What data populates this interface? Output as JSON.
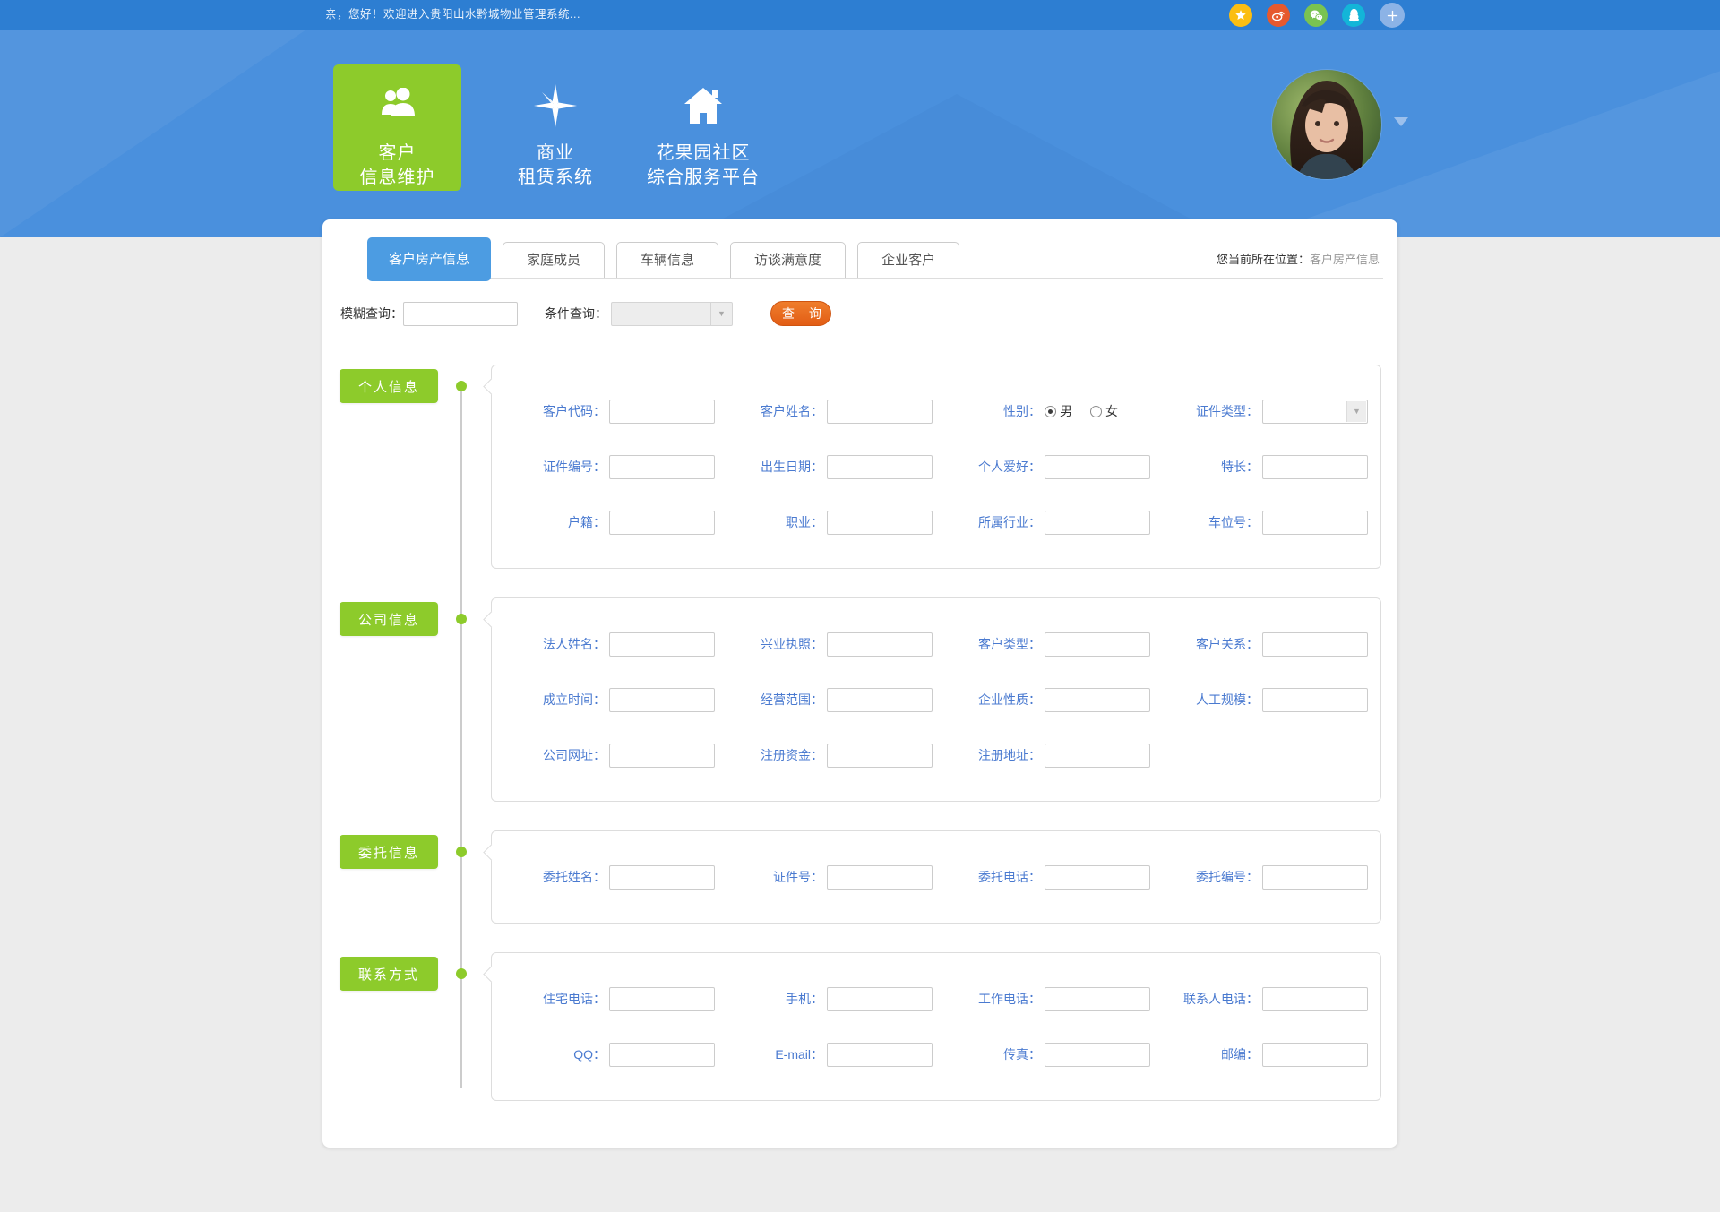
{
  "colors": {
    "topbar_blue": "#2d7ed2",
    "header_blue": "#4a90dd",
    "accent_green": "#8dcb2b",
    "tab_active_blue": "#4c9ce2",
    "field_label_blue": "#4a7ad0",
    "query_orange": "#e8671d"
  },
  "topbar": {
    "welcome": "亲，您好！欢迎进入贵阳山水黔城物业管理系统...",
    "social": [
      {
        "name": "qzone-star-icon",
        "color": "#fbbe12"
      },
      {
        "name": "weibo-icon",
        "color": "#e6592e"
      },
      {
        "name": "wechat-icon",
        "color": "#79c351"
      },
      {
        "name": "qq-icon",
        "color": "#13b5d8"
      },
      {
        "name": "share-more-icon",
        "color": "#8cb3e6",
        "glyph": "+"
      }
    ]
  },
  "header": {
    "modules": [
      {
        "line1": "客户",
        "line2": "信息维护",
        "icon": "users-icon",
        "active": true
      },
      {
        "line1": "商业",
        "line2": "租赁系统",
        "icon": "compass-icon",
        "active": false
      },
      {
        "line1": "花果园社区",
        "line2": "综合服务平台",
        "icon": "home-icon",
        "active": false
      }
    ]
  },
  "tabs": [
    {
      "label": "客户房产信息",
      "active": true
    },
    {
      "label": "家庭成员",
      "active": false
    },
    {
      "label": "车辆信息",
      "active": false
    },
    {
      "label": "访谈满意度",
      "active": false
    },
    {
      "label": "企业客户",
      "active": false
    }
  ],
  "breadcrumb": {
    "prefix": "您当前所在位置：",
    "current": "客户房产信息"
  },
  "search": {
    "fuzzy_label": "模糊查询：",
    "condition_label": "条件查询：",
    "query_button": "查 询"
  },
  "form": {
    "sections": [
      {
        "title": "个人信息",
        "rows": [
          [
            {
              "label": "客户代码：",
              "type": "text"
            },
            {
              "label": "客户姓名：",
              "type": "text"
            },
            {
              "label": "性别：",
              "type": "radio",
              "options": [
                "男",
                "女"
              ],
              "selected": "男"
            },
            {
              "label": "证件类型：",
              "type": "select"
            }
          ],
          [
            {
              "label": "证件编号：",
              "type": "text"
            },
            {
              "label": "出生日期：",
              "type": "text"
            },
            {
              "label": "个人爱好：",
              "type": "text"
            },
            {
              "label": "特长：",
              "type": "text"
            }
          ],
          [
            {
              "label": "户籍：",
              "type": "text"
            },
            {
              "label": "职业：",
              "type": "text"
            },
            {
              "label": "所属行业：",
              "type": "text"
            },
            {
              "label": "车位号：",
              "type": "text"
            }
          ]
        ]
      },
      {
        "title": "公司信息",
        "rows": [
          [
            {
              "label": "法人姓名：",
              "type": "text"
            },
            {
              "label": "兴业执照：",
              "type": "text"
            },
            {
              "label": "客户类型：",
              "type": "text"
            },
            {
              "label": "客户关系：",
              "type": "text"
            }
          ],
          [
            {
              "label": "成立时间：",
              "type": "text"
            },
            {
              "label": "经营范围：",
              "type": "text"
            },
            {
              "label": "企业性质：",
              "type": "text"
            },
            {
              "label": "人工规模：",
              "type": "text"
            }
          ],
          [
            {
              "label": "公司网址：",
              "type": "text"
            },
            {
              "label": "注册资金：",
              "type": "text"
            },
            {
              "label": "注册地址：",
              "type": "text"
            }
          ]
        ]
      },
      {
        "title": "委托信息",
        "rows": [
          [
            {
              "label": "委托姓名：",
              "type": "text"
            },
            {
              "label": "证件号：",
              "type": "text"
            },
            {
              "label": "委托电话：",
              "type": "text"
            },
            {
              "label": "委托编号：",
              "type": "text"
            }
          ]
        ]
      },
      {
        "title": "联系方式",
        "rows": [
          [
            {
              "label": "住宅电话：",
              "type": "text"
            },
            {
              "label": "手机：",
              "type": "text"
            },
            {
              "label": "工作电话：",
              "type": "text"
            },
            {
              "label": "联系人电话：",
              "type": "text"
            }
          ],
          [
            {
              "label": "QQ：",
              "type": "text"
            },
            {
              "label": "E-mail：",
              "type": "text"
            },
            {
              "label": "传真：",
              "type": "text"
            },
            {
              "label": "邮编：",
              "type": "text"
            }
          ]
        ]
      }
    ]
  }
}
